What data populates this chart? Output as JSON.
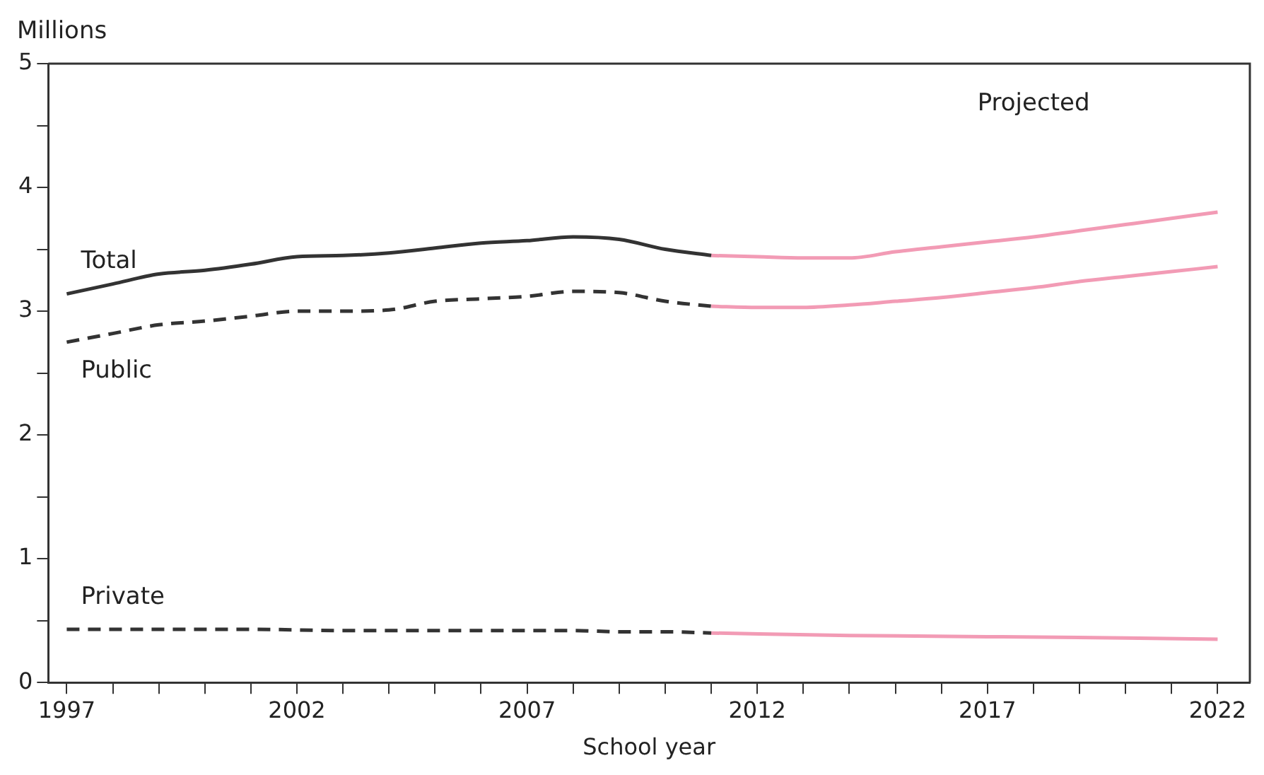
{
  "chart_data": {
    "type": "line",
    "ylabel": "Millions",
    "xlabel": "School year",
    "annotations": [
      "Projected"
    ],
    "xlim": [
      1996.6,
      2022.7
    ],
    "ylim": [
      0,
      5
    ],
    "xticks": [
      1997,
      {
        "value": 1998,
        "label": null
      },
      {
        "value": 1999,
        "label": null
      },
      {
        "value": 2000,
        "label": null
      },
      {
        "value": 2001,
        "label": null
      },
      2002,
      {
        "value": 2003,
        "label": null
      },
      {
        "value": 2004,
        "label": null
      },
      {
        "value": 2005,
        "label": null
      },
      {
        "value": 2006,
        "label": null
      },
      2007,
      {
        "value": 2008,
        "label": null
      },
      {
        "value": 2009,
        "label": null
      },
      {
        "value": 2010,
        "label": null
      },
      {
        "value": 2011,
        "label": null
      },
      2012,
      {
        "value": 2013,
        "label": null
      },
      {
        "value": 2014,
        "label": null
      },
      {
        "value": 2015,
        "label": null
      },
      {
        "value": 2016,
        "label": null
      },
      2017,
      {
        "value": 2018,
        "label": null
      },
      {
        "value": 2019,
        "label": null
      },
      {
        "value": 2020,
        "label": null
      },
      {
        "value": 2021,
        "label": null
      },
      2022
    ],
    "yticks": [
      0,
      {
        "value": 0.5,
        "label": null
      },
      1,
      {
        "value": 1.5,
        "label": null
      },
      2,
      {
        "value": 2.5,
        "label": null
      },
      3,
      {
        "value": 3.5,
        "label": null
      },
      4,
      {
        "value": 4.5,
        "label": null
      },
      5
    ],
    "grid": false,
    "legend": false,
    "marker": "none",
    "series": [
      {
        "name": "Total",
        "color": "#333333",
        "line_style": "solid",
        "x": [
          1997,
          1998,
          1999,
          2000,
          2001,
          2002,
          2003,
          2004,
          2005,
          2006,
          2007,
          2008,
          2009,
          2010,
          2011
        ],
        "values": [
          3.14,
          3.22,
          3.3,
          3.33,
          3.38,
          3.44,
          3.45,
          3.47,
          3.51,
          3.55,
          3.57,
          3.6,
          3.58,
          3.5,
          3.45
        ]
      },
      {
        "name": "Public",
        "color": "#333333",
        "line_style": "dashed",
        "x": [
          1997,
          1998,
          1999,
          2000,
          2001,
          2002,
          2003,
          2004,
          2005,
          2006,
          2007,
          2008,
          2009,
          2010,
          2011
        ],
        "values": [
          2.75,
          2.82,
          2.89,
          2.92,
          2.96,
          3.0,
          3.0,
          3.01,
          3.08,
          3.1,
          3.12,
          3.16,
          3.15,
          3.08,
          3.04
        ]
      },
      {
        "name": "Private",
        "color": "#333333",
        "line_style": "dashed",
        "x": [
          1997,
          1999,
          2001,
          2003,
          2005,
          2007,
          2008,
          2009,
          2010,
          2011
        ],
        "values": [
          0.43,
          0.43,
          0.43,
          0.42,
          0.42,
          0.42,
          0.42,
          0.41,
          0.41,
          0.4
        ]
      },
      {
        "color": "#f29bb5",
        "line_style": "solid",
        "x": [
          2011,
          2012,
          2013,
          2014,
          2015,
          2016,
          2017,
          2018,
          2019,
          2020,
          2021,
          2022
        ],
        "values": [
          3.45,
          3.44,
          3.43,
          3.43,
          3.48,
          3.52,
          3.56,
          3.6,
          3.65,
          3.7,
          3.75,
          3.8
        ]
      },
      {
        "color": "#f29bb5",
        "line_style": "solid",
        "x": [
          2011,
          2012,
          2013,
          2014,
          2015,
          2016,
          2017,
          2018,
          2019,
          2020,
          2021,
          2022
        ],
        "values": [
          3.04,
          3.03,
          3.03,
          3.05,
          3.08,
          3.11,
          3.15,
          3.19,
          3.24,
          3.28,
          3.32,
          3.36
        ]
      },
      {
        "color": "#f29bb5",
        "line_style": "solid",
        "x": [
          2011,
          2014,
          2017,
          2020,
          2022
        ],
        "values": [
          0.4,
          0.38,
          0.37,
          0.36,
          0.35
        ]
      }
    ]
  }
}
